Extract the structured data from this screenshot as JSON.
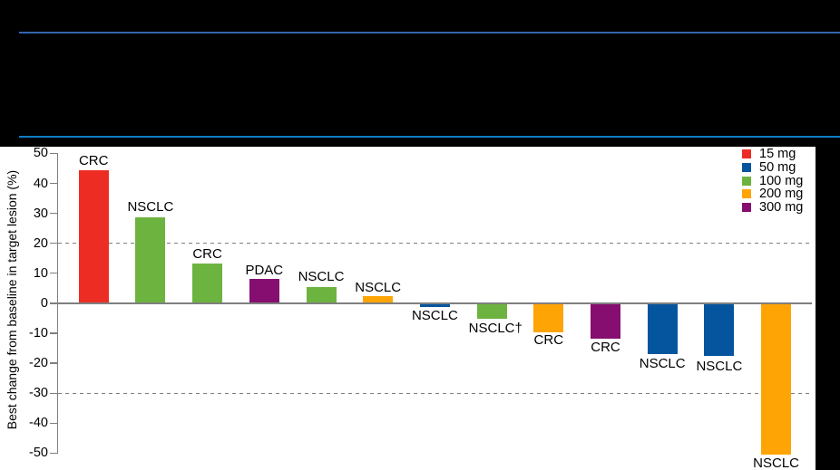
{
  "banner": {
    "background": "#000000",
    "line1_color": "#3465af",
    "line2_color": "#0e7dc4"
  },
  "chart_data": {
    "type": "bar",
    "subtype": "waterfall",
    "title": "",
    "ylabel": "Best change from baseline in target lesion (%)",
    "ylim": [
      -50,
      50
    ],
    "ytick_step": 10,
    "yticks": [
      50,
      40,
      30,
      20,
      10,
      0,
      -10,
      -20,
      -30,
      -40,
      -50
    ],
    "reference_lines": [
      20,
      -30
    ],
    "grid": "off",
    "legend_position": "top-right",
    "legend": [
      {
        "label": "15 mg",
        "color": "#ed2d24"
      },
      {
        "label": "50 mg",
        "color": "#05559e"
      },
      {
        "label": "100 mg",
        "color": "#6db33f"
      },
      {
        "label": "200 mg",
        "color": "#ffa405"
      },
      {
        "label": "300 mg",
        "color": "#850e70"
      }
    ],
    "bars": [
      {
        "label": "CRC",
        "dose": "15 mg",
        "value": 44.5
      },
      {
        "label": "NSCLC",
        "dose": "100 mg",
        "value": 28.6
      },
      {
        "label": "CRC",
        "dose": "100 mg",
        "value": 13.3
      },
      {
        "label": "PDAC",
        "dose": "300 mg",
        "value": 8.2
      },
      {
        "label": "NSCLC",
        "dose": "100 mg",
        "value": 5.3
      },
      {
        "label": "NSCLC",
        "dose": "200 mg",
        "value": 2.4
      },
      {
        "label": "NSCLC",
        "dose": "50 mg",
        "value": -1.1
      },
      {
        "label": "NSCLC†",
        "dose": "100 mg",
        "value": -5.1
      },
      {
        "label": "CRC",
        "dose": "200 mg",
        "value": -9.7
      },
      {
        "label": "CRC",
        "dose": "300 mg",
        "value": -11.7
      },
      {
        "label": "NSCLC",
        "dose": "50 mg",
        "value": -16.9
      },
      {
        "label": "NSCLC",
        "dose": "50 mg",
        "value": -17.6
      },
      {
        "label": "NSCLC",
        "dose": "200 mg",
        "value": -50.5
      }
    ],
    "axis_color": "#7f7f7f",
    "text_color": "#000000"
  }
}
